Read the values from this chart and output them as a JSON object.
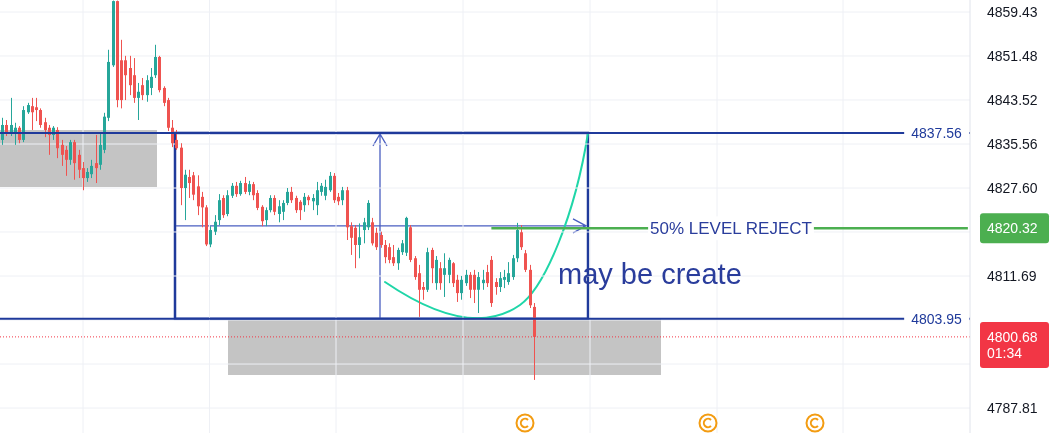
{
  "chart_data": {
    "type": "candlestick",
    "categories": [
      null,
      null,
      null,
      null,
      null,
      null,
      null,
      null,
      null,
      null,
      null,
      null,
      null,
      null,
      null,
      null,
      null,
      null,
      null,
      null,
      null,
      null,
      null,
      null,
      null,
      null,
      null,
      null,
      null,
      null,
      null,
      null,
      null,
      null,
      null,
      null,
      null,
      null,
      null,
      null,
      null,
      null,
      null,
      null,
      null,
      null,
      null,
      null,
      null,
      null,
      null,
      null,
      null,
      null,
      null,
      null,
      null,
      null,
      null,
      null,
      null,
      null,
      null,
      null,
      null,
      null,
      null,
      null,
      null,
      null,
      null,
      null,
      null,
      null,
      null,
      null,
      null,
      null,
      null,
      null,
      null,
      null,
      null,
      null,
      null,
      null,
      null,
      null,
      null,
      null,
      null,
      null,
      null,
      null,
      null,
      null,
      null,
      null,
      null,
      null,
      null,
      null,
      null,
      null,
      null,
      null,
      null,
      null,
      null,
      null,
      null,
      null,
      null,
      null,
      null,
      null,
      null,
      null,
      null,
      null,
      null,
      null,
      null,
      null,
      null,
      null,
      null,
      null,
      null,
      null,
      null,
      null,
      null,
      null,
      null,
      null,
      null,
      null,
      null,
      null,
      null,
      null,
      null,
      null,
      null,
      null,
      null,
      null,
      null,
      null,
      null,
      null,
      null,
      null,
      null,
      null,
      null,
      null,
      null,
      null,
      null,
      null,
      null,
      null,
      null,
      null,
      null,
      null,
      null,
      null,
      null,
      null,
      null,
      null,
      null,
      null,
      null,
      null,
      null,
      null,
      null,
      null,
      null,
      null,
      null,
      null,
      null,
      null,
      null,
      null,
      null,
      null,
      null,
      null,
      null,
      null,
      null,
      null,
      null,
      null,
      null,
      null,
      null,
      null,
      null,
      null,
      null,
      null,
      null,
      null,
      null,
      null,
      null,
      null,
      null,
      null,
      null,
      null,
      null,
      null,
      null,
      null,
      null,
      null,
      null,
      null,
      null,
      null
    ],
    "ohlc": [
      [
        4836.3,
        4840.3,
        4835.4,
        4839.0
      ],
      [
        4839.0,
        4839.9,
        4837.0,
        4837.6
      ],
      [
        4837.6,
        4843.9,
        4837.0,
        4839.0
      ],
      [
        4837.6,
        4839.4,
        4835.4,
        4838.5
      ],
      [
        4838.5,
        4838.8,
        4835.7,
        4836.3
      ],
      [
        4836.3,
        4842.4,
        4835.9,
        4841.7
      ],
      [
        4841.3,
        4843.0,
        4841.0,
        4842.6
      ],
      [
        4842.4,
        4843.9,
        4838.1,
        4841.3
      ],
      [
        4842.2,
        4843.9,
        4839.7,
        4841.7
      ],
      [
        4841.7,
        4842.0,
        4838.5,
        4839.0
      ],
      [
        4839.5,
        4840.3,
        4836.8,
        4838.1
      ],
      [
        4838.5,
        4839.0,
        4833.6,
        4837.2
      ],
      [
        4837.2,
        4838.8,
        4836.3,
        4838.5
      ],
      [
        4838.1,
        4838.6,
        4833.0,
        4834.8
      ],
      [
        4835.4,
        4836.3,
        4831.6,
        4833.6
      ],
      [
        4834.5,
        4835.2,
        4829.8,
        4832.7
      ],
      [
        4832.7,
        4836.3,
        4831.8,
        4835.9
      ],
      [
        4835.9,
        4836.3,
        4829.1,
        4832.1
      ],
      [
        4833.6,
        4834.5,
        4829.4,
        4830.9
      ],
      [
        4831.2,
        4832.3,
        4827.2,
        4829.4
      ],
      [
        4829.4,
        4831.2,
        4828.7,
        4830.5
      ],
      [
        4830.1,
        4832.7,
        4829.4,
        4831.6
      ],
      [
        4832.1,
        4837.2,
        4828.5,
        4831.2
      ],
      [
        4831.8,
        4837.6,
        4830.9,
        4835.4
      ],
      [
        4834.5,
        4841.2,
        4833.9,
        4840.5
      ],
      [
        4840.3,
        4852.6,
        4839.7,
        4850.4
      ],
      [
        4849.8,
        4861.5,
        4849.5,
        4861.4
      ],
      [
        4861.4,
        4861.5,
        4842.2,
        4843.5
      ],
      [
        4850.7,
        4854.4,
        4842.0,
        4843.5
      ],
      [
        4850.7,
        4851.5,
        4843.5,
        4848.0
      ],
      [
        4849.3,
        4851.5,
        4844.4,
        4846.2
      ],
      [
        4848.0,
        4851.1,
        4843.0,
        4843.9
      ],
      [
        4843.9,
        4846.6,
        4839.9,
        4845.0
      ],
      [
        4846.2,
        4847.5,
        4843.5,
        4844.4
      ],
      [
        4844.4,
        4848.0,
        4843.2,
        4847.1
      ],
      [
        4845.7,
        4849.3,
        4844.4,
        4847.7
      ],
      [
        4848.0,
        4853.5,
        4847.5,
        4851.3
      ],
      [
        4851.3,
        4851.5,
        4844.9,
        4845.3
      ],
      [
        4845.7,
        4846.0,
        4842.4,
        4843.0
      ],
      [
        4843.5,
        4843.9,
        4837.9,
        4838.5
      ],
      [
        4838.5,
        4839.9,
        4835.0,
        4835.7
      ],
      [
        4836.3,
        4838.1,
        4834.5,
        4834.8
      ],
      [
        4834.9,
        4835.7,
        4824.5,
        4827.6
      ],
      [
        4827.6,
        4830.9,
        4821.8,
        4830.0
      ],
      [
        4829.6,
        4830.9,
        4825.8,
        4828.5
      ],
      [
        4829.9,
        4830.5,
        4825.4,
        4826.4
      ],
      [
        4827.9,
        4829.9,
        4822.7,
        4824.3
      ],
      [
        4826.0,
        4826.9,
        4820.5,
        4824.1
      ],
      [
        4824.1,
        4824.5,
        4817.1,
        4817.4
      ],
      [
        4817.4,
        4820.7,
        4816.9,
        4820.0
      ],
      [
        4819.7,
        4822.7,
        4819.1,
        4821.5
      ],
      [
        4821.8,
        4826.5,
        4820.9,
        4825.4
      ],
      [
        4825.8,
        4826.3,
        4822.2,
        4822.7
      ],
      [
        4822.9,
        4827.2,
        4822.5,
        4826.3
      ],
      [
        4826.2,
        4828.5,
        4825.8,
        4828.0
      ],
      [
        4828.0,
        4828.7,
        4826.0,
        4826.5
      ],
      [
        4826.5,
        4828.9,
        4826.2,
        4828.5
      ],
      [
        4828.5,
        4829.6,
        4826.5,
        4826.9
      ],
      [
        4826.9,
        4828.9,
        4826.3,
        4828.3
      ],
      [
        4828.3,
        4828.7,
        4825.4,
        4826.3
      ],
      [
        4826.7,
        4827.2,
        4823.6,
        4824.0
      ],
      [
        4824.2,
        4824.5,
        4820.7,
        4821.6
      ],
      [
        4821.8,
        4824.1,
        4820.7,
        4823.6
      ],
      [
        4823.6,
        4826.3,
        4823.2,
        4825.8
      ],
      [
        4825.8,
        4826.3,
        4822.7,
        4823.3
      ],
      [
        4822.9,
        4825.4,
        4821.4,
        4824.3
      ],
      [
        4823.3,
        4825.4,
        4821.8,
        4824.9
      ],
      [
        4824.9,
        4827.6,
        4824.5,
        4826.9
      ],
      [
        4826.9,
        4827.8,
        4824.9,
        4825.4
      ],
      [
        4825.8,
        4826.2,
        4823.1,
        4823.6
      ],
      [
        4825.1,
        4825.4,
        4821.8,
        4823.6
      ],
      [
        4824.5,
        4826.7,
        4823.3,
        4826.0
      ],
      [
        4826.0,
        4826.3,
        4824.5,
        4825.4
      ],
      [
        4825.2,
        4826.5,
        4823.6,
        4825.8
      ],
      [
        4824.5,
        4828.7,
        4822.7,
        4827.2
      ],
      [
        4826.9,
        4828.5,
        4826.2,
        4828.0
      ],
      [
        4826.2,
        4829.1,
        4825.4,
        4827.8
      ],
      [
        4827.2,
        4830.5,
        4826.9,
        4829.8
      ],
      [
        4829.8,
        4830.3,
        4824.9,
        4825.4
      ],
      [
        4826.0,
        4826.7,
        4824.5,
        4825.2
      ],
      [
        4825.4,
        4827.8,
        4824.5,
        4827.2
      ],
      [
        4827.2,
        4827.8,
        4818.2,
        4820.5
      ],
      [
        4820.7,
        4821.4,
        4815.5,
        4818.6
      ],
      [
        4820.4,
        4820.9,
        4813.1,
        4817.3
      ],
      [
        4817.3,
        4821.2,
        4814.9,
        4818.7
      ],
      [
        4820.0,
        4822.2,
        4817.6,
        4821.4
      ],
      [
        4820.5,
        4825.4,
        4820.0,
        4824.9
      ],
      [
        4821.4,
        4822.2,
        4817.2,
        4817.6
      ],
      [
        4819.5,
        4820.4,
        4816.4,
        4816.9
      ],
      [
        4819.1,
        4819.7,
        4816.8,
        4817.3
      ],
      [
        4817.3,
        4818.2,
        4814.0,
        4815.1
      ],
      [
        4816.9,
        4817.6,
        4814.0,
        4814.6
      ],
      [
        4815.1,
        4817.3,
        4813.5,
        4814.0
      ],
      [
        4814.0,
        4816.8,
        4812.8,
        4816.4
      ],
      [
        4816.0,
        4818.2,
        4815.5,
        4817.6
      ],
      [
        4815.9,
        4822.4,
        4815.3,
        4822.2
      ],
      [
        4820.5,
        4820.9,
        4814.2,
        4814.6
      ],
      [
        4814.9,
        4815.3,
        4811.0,
        4811.5
      ],
      [
        4812.2,
        4813.7,
        4804.3,
        4809.2
      ],
      [
        4809.7,
        4810.6,
        4807.4,
        4809.2
      ],
      [
        4809.2,
        4816.8,
        4808.8,
        4816.0
      ],
      [
        4816.4,
        4816.8,
        4810.4,
        4813.1
      ],
      [
        4810.4,
        4815.3,
        4809.2,
        4814.6
      ],
      [
        4813.1,
        4814.2,
        4809.2,
        4810.4
      ],
      [
        4811.9,
        4815.8,
        4807.9,
        4813.1
      ],
      [
        4811.9,
        4815.0,
        4810.4,
        4814.6
      ],
      [
        4814.0,
        4814.2,
        4809.7,
        4810.4
      ],
      [
        4811.0,
        4811.9,
        4807.0,
        4808.6
      ],
      [
        4808.6,
        4811.7,
        4807.4,
        4811.0
      ],
      [
        4810.4,
        4812.8,
        4809.9,
        4811.9
      ],
      [
        4811.9,
        4812.4,
        4807.7,
        4809.2
      ],
      [
        4811.9,
        4812.8,
        4806.8,
        4809.2
      ],
      [
        4809.2,
        4812.4,
        4805.0,
        4811.5
      ],
      [
        4810.4,
        4812.8,
        4809.2,
        4811.0
      ],
      [
        4812.4,
        4813.7,
        4809.7,
        4810.4
      ],
      [
        4814.6,
        4815.3,
        4806.1,
        4806.8
      ],
      [
        4810.6,
        4811.3,
        4808.3,
        4809.7
      ],
      [
        4809.7,
        4812.4,
        4808.8,
        4811.3
      ],
      [
        4811.0,
        4812.8,
        4809.5,
        4811.5
      ],
      [
        4810.6,
        4814.2,
        4810.1,
        4812.2
      ],
      [
        4811.5,
        4815.5,
        4811.0,
        4814.9
      ],
      [
        4814.9,
        4821.3,
        4814.2,
        4820.0
      ],
      [
        4819.6,
        4820.9,
        4816.4,
        4816.9
      ],
      [
        4815.8,
        4816.4,
        4812.4,
        4812.8
      ],
      [
        4812.8,
        4813.7,
        4805.9,
        4806.4
      ],
      [
        4806.1,
        4806.8,
        4792.9,
        4800.68
      ],
      null,
      null,
      null,
      null,
      null,
      null,
      null,
      null,
      null,
      null,
      null,
      null,
      null,
      null,
      null,
      null,
      null,
      null,
      null,
      null,
      null,
      null,
      null,
      null,
      null,
      null,
      null,
      null,
      null,
      null,
      null,
      null,
      null,
      null,
      null,
      null,
      null,
      null,
      null,
      null,
      null,
      null,
      null,
      null,
      null,
      null,
      null,
      null,
      null,
      null,
      null,
      null,
      null,
      null,
      null,
      null,
      null,
      null,
      null,
      null,
      null,
      null,
      null,
      null,
      null,
      null,
      null,
      null,
      null,
      null,
      null,
      null,
      null,
      null,
      null,
      null,
      null,
      null,
      null,
      null,
      null,
      null,
      null,
      null,
      null,
      null,
      null,
      null,
      null,
      null,
      null,
      null,
      null,
      null,
      null,
      null,
      null,
      null,
      null,
      null,
      null,
      null
    ],
    "colors": [
      "#26a69a",
      "#ef5350",
      "#26a69a",
      "#26a69a",
      "#ef5350",
      "#26a69a",
      "#26a69a",
      "#ef5350",
      "#ef5350",
      "#ef5350",
      "#ef5350",
      "#ef5350",
      "#26a69a",
      "#ef5350",
      "#ef5350",
      "#ef5350",
      "#26a69a",
      "#ef5350",
      "#ef5350",
      "#ef5350",
      "#26a69a",
      "#26a69a",
      "#ef5350",
      "#26a69a",
      "#26a69a",
      "#26a69a",
      "#26a69a",
      "#ef5350",
      "#ef5350",
      "#ef5350",
      "#ef5350",
      "#ef5350",
      "#26a69a",
      "#ef5350",
      "#26a69a",
      "#26a69a",
      "#26a69a",
      "#ef5350",
      "#ef5350",
      "#ef5350",
      "#ef5350",
      "#ef5350",
      "#ef5350",
      "#26a69a",
      "#ef5350",
      "#ef5350",
      "#ef5350",
      "#ef5350",
      "#ef5350",
      "#26a69a",
      "#26a69a",
      "#26a69a",
      "#ef5350",
      "#26a69a",
      "#26a69a",
      "#ef5350",
      "#26a69a",
      "#ef5350",
      "#26a69a",
      "#ef5350",
      "#ef5350",
      "#ef5350",
      "#26a69a",
      "#26a69a",
      "#ef5350",
      "#26a69a",
      "#26a69a",
      "#26a69a",
      "#ef5350",
      "#ef5350",
      "#ef5350",
      "#26a69a",
      "#ef5350",
      "#26a69a",
      "#26a69a",
      "#26a69a",
      "#26a69a",
      "#26a69a",
      "#ef5350",
      "#ef5350",
      "#26a69a",
      "#ef5350",
      "#ef5350",
      "#ef5350",
      "#26a69a",
      "#26a69a",
      "#26a69a",
      "#ef5350",
      "#ef5350",
      "#ef5350",
      "#ef5350",
      "#ef5350",
      "#ef5350",
      "#26a69a",
      "#26a69a",
      "#26a69a",
      "#ef5350",
      "#ef5350",
      "#ef5350",
      "#ef5350",
      "#26a69a",
      "#ef5350",
      "#26a69a",
      "#ef5350",
      "#26a69a",
      "#26a69a",
      "#ef5350",
      "#ef5350",
      "#26a69a",
      "#26a69a",
      "#ef5350",
      "#ef5350",
      "#26a69a",
      "#26a69a",
      "#ef5350",
      "#ef5350",
      "#ef5350",
      "#26a69a",
      "#26a69a",
      "#26a69a",
      "#26a69a",
      "#26a69a",
      "#ef5350",
      "#ef5350",
      "#ef5350",
      "#ef5350",
      null,
      null,
      null,
      null,
      null,
      null,
      null,
      null,
      null,
      null,
      null,
      null,
      null,
      null,
      null,
      null,
      null,
      null,
      null,
      null,
      null,
      null,
      null,
      null,
      null,
      null,
      null,
      null,
      null,
      null,
      null,
      null,
      null,
      null,
      null,
      null,
      null,
      null,
      null,
      null,
      null,
      null,
      null,
      null,
      null,
      null,
      null,
      null,
      null,
      null,
      null,
      null,
      null,
      null,
      null,
      null,
      null,
      null,
      null,
      null,
      null,
      null,
      null,
      null,
      null,
      null,
      null,
      null,
      null,
      null,
      null,
      null,
      null,
      null,
      null,
      null,
      null,
      null,
      null,
      null,
      null,
      null,
      null,
      null,
      null,
      null,
      null,
      null,
      null,
      null,
      null,
      null,
      null,
      null,
      null,
      null,
      null,
      null,
      null,
      null,
      null,
      null
    ],
    "ylim": [
      4783.3,
      4861.6
    ],
    "yticks": [
      4859.43,
      4851.48,
      4843.52,
      4835.56,
      {
        "value": 4827.6,
        "label": "4827.60"
      },
      {
        "value": 4820.32,
        "label": "4820.32"
      },
      {
        "value": 4819.65,
        "label": null
      },
      4811.69,
      {
        "value": 4803.73,
        "label": null
      },
      {
        "value": 4800.68,
        "label": "4800.68"
      },
      {
        "value": 4795.77,
        "label": null
      },
      4787.81
    ],
    "grid": true,
    "tick_labels": "y",
    "ref_lines": [
      {
        "axis": "y",
        "value": 4837.56,
        "label": "4837.56",
        "color": "#1f3a9b"
      },
      {
        "axis": "y",
        "value": 4803.95,
        "label": "4803.95",
        "color": "#1f3a9b"
      },
      {
        "axis": "y",
        "value": 4820.32,
        "label": "50% LEVEL REJECT",
        "color": "#4caf50"
      },
      {
        "axis": "y",
        "value": 4800.68,
        "color": "#f23645",
        "line_style": "dotted"
      }
    ],
    "annotations": [
      "may be create",
      "01:34"
    ]
  }
}
